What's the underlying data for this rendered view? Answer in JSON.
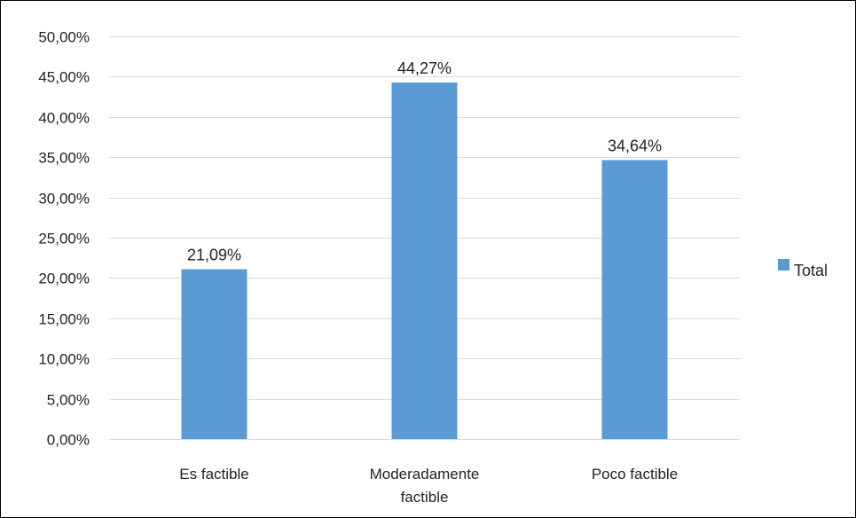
{
  "chart_data": {
    "type": "bar",
    "categories": [
      [
        "Es factible"
      ],
      [
        "Moderadamente",
        "factible"
      ],
      [
        "Poco factible"
      ]
    ],
    "series": [
      {
        "name": "Total",
        "values": [
          21.09,
          44.27,
          34.64
        ],
        "labels": [
          "21,09%",
          "44,27%",
          "34,64%"
        ],
        "color": "#5B9BD5"
      }
    ],
    "ylim": [
      0,
      50
    ],
    "yticks": [
      0,
      5,
      10,
      15,
      20,
      25,
      30,
      35,
      40,
      45,
      50
    ],
    "ytick_labels": [
      "0,00%",
      "5,00%",
      "10,00%",
      "15,00%",
      "20,00%",
      "25,00%",
      "30,00%",
      "35,00%",
      "40,00%",
      "45,00%",
      "50,00%"
    ],
    "grid": true,
    "gridline_color": "#D9D9D9",
    "legend_position": "right",
    "title": "",
    "xlabel": "",
    "ylabel": ""
  }
}
